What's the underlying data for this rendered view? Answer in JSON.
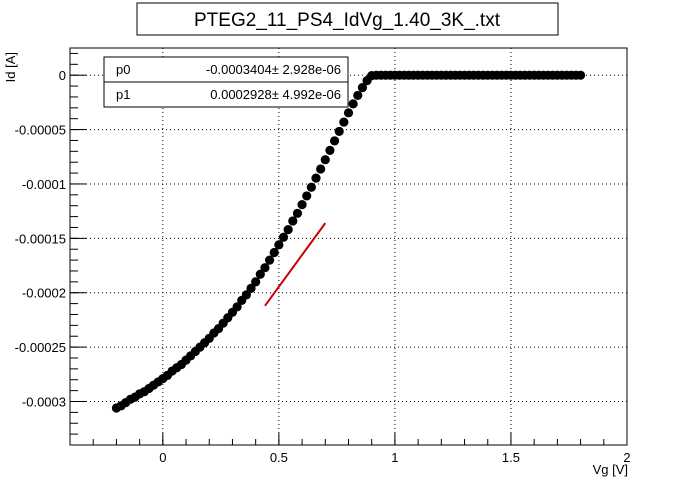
{
  "chart_data": {
    "type": "scatter",
    "title": "PTEG2_11_PS4_IdVg_1.40_3K_.txt",
    "xlabel": "Vg [V]",
    "ylabel": "Id [A]",
    "xlim": [
      -0.4,
      2.0
    ],
    "ylim": [
      -0.00034,
      2.5e-05
    ],
    "grid": true,
    "x_ticks": [
      0,
      0.5,
      1,
      1.5,
      2
    ],
    "x_tick_labels": [
      "0",
      "0.5",
      "1",
      "1.5",
      "2"
    ],
    "y_ticks": [
      0,
      -5e-05,
      -0.0001,
      -0.00015,
      -0.0002,
      -0.00025,
      -0.0003
    ],
    "y_tick_labels": [
      "0",
      "-0.00005",
      "-0.0001",
      "-0.00015",
      "-0.0002",
      "-0.00025",
      "-0.0003"
    ],
    "series": [
      {
        "kind": "points",
        "color": "#000000",
        "x": [
          -0.2,
          -0.18,
          -0.16,
          -0.14,
          -0.12,
          -0.1,
          -0.08,
          -0.06,
          -0.04,
          -0.02,
          0.0,
          0.02,
          0.04,
          0.06,
          0.08,
          0.1,
          0.12,
          0.14,
          0.16,
          0.18,
          0.2,
          0.22,
          0.24,
          0.26,
          0.28,
          0.3,
          0.32,
          0.34,
          0.36,
          0.38,
          0.4,
          0.42,
          0.44,
          0.46,
          0.48,
          0.5,
          0.52,
          0.54,
          0.56,
          0.58,
          0.6,
          0.62,
          0.64,
          0.66,
          0.68,
          0.7,
          0.72,
          0.74,
          0.76,
          0.78,
          0.8,
          0.82,
          0.84,
          0.86,
          0.88,
          0.9,
          0.92,
          0.94,
          0.96,
          0.98,
          1.0,
          1.02,
          1.04,
          1.06,
          1.08,
          1.1,
          1.12,
          1.14,
          1.16,
          1.18,
          1.2,
          1.22,
          1.24,
          1.26,
          1.28,
          1.3,
          1.32,
          1.34,
          1.36,
          1.38,
          1.4,
          1.42,
          1.44,
          1.46,
          1.48,
          1.5,
          1.52,
          1.54,
          1.56,
          1.58,
          1.6,
          1.62,
          1.64,
          1.66,
          1.68,
          1.7,
          1.72,
          1.74,
          1.76,
          1.78,
          1.8
        ],
        "y": [
          -0.000306,
          -0.000304,
          -0.000301,
          -0.000298,
          -0.000296,
          -0.000293,
          -0.000291,
          -0.000288,
          -0.000285,
          -0.000282,
          -0.000279,
          -0.000276,
          -0.000272,
          -0.000269,
          -0.000266,
          -0.000262,
          -0.000258,
          -0.000254,
          -0.00025,
          -0.000246,
          -0.000242,
          -0.000237,
          -0.000233,
          -0.000228,
          -0.000223,
          -0.000218,
          -0.000213,
          -0.000207,
          -0.000202,
          -0.000196,
          -0.00019,
          -0.000183,
          -0.000177,
          -0.00017,
          -0.000163,
          -0.000156,
          -0.000149,
          -0.000142,
          -0.000134,
          -0.000127,
          -0.000119,
          -0.000111,
          -0.000103,
          -9.46e-05,
          -8.62e-05,
          -7.77e-05,
          -6.91e-05,
          -6.04e-05,
          -5.17e-05,
          -4.31e-05,
          -3.46e-05,
          -2.64e-05,
          -1.86e-05,
          -1.14e-05,
          -5e-06,
          -4e-07,
          0.0,
          0.0,
          0.0,
          0.0,
          0.0,
          0.0,
          0.0,
          0.0,
          0.0,
          0.0,
          0.0,
          0.0,
          0.0,
          0.0,
          0.0,
          0.0,
          0.0,
          0.0,
          0.0,
          0.0,
          0.0,
          0.0,
          0.0,
          0.0,
          0.0,
          0.0,
          0.0,
          0.0,
          0.0,
          0.0,
          0.0,
          0.0,
          0.0,
          0.0,
          0.0,
          0.0,
          0.0,
          0.0,
          0.0,
          0.0,
          0.0,
          0.0,
          0.0,
          0.0,
          0.0
        ]
      },
      {
        "kind": "fit-line",
        "color": "#cc0000",
        "x": [
          0.44,
          0.7
        ],
        "y": [
          -0.000212,
          -0.000136
        ]
      }
    ],
    "stats": [
      {
        "name": "p0",
        "value": "-0.0003404± 2.928e-06"
      },
      {
        "name": "p1",
        "value": "0.0002928± 4.992e-06"
      }
    ]
  }
}
